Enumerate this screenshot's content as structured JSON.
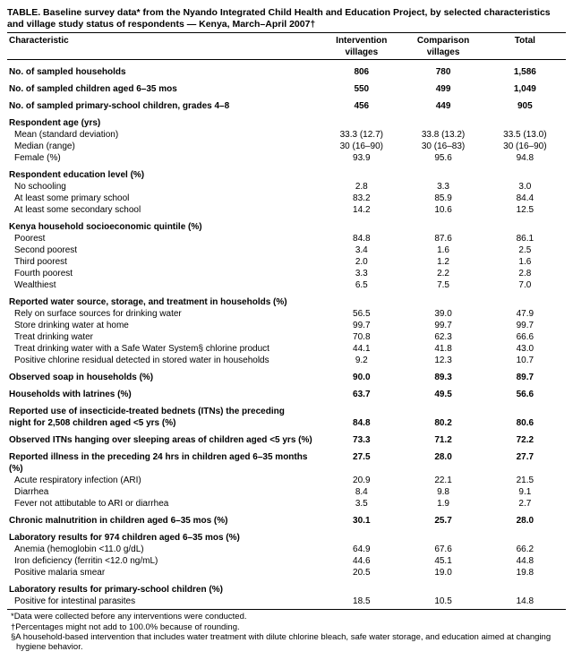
{
  "title": "TABLE. Baseline survey data* from the Nyando Integrated Child Health and Education Project, by selected characteristics and village study status of respondents — Kenya, March–April 2007†",
  "columns": {
    "c0": "Characteristic",
    "c1": "Intervention villages",
    "c2": "Comparison villages",
    "c3": "Total"
  },
  "rows": [
    {
      "label": "No. of sampled households",
      "bold": true,
      "v": [
        "806",
        "780",
        "1,586"
      ],
      "gap": true
    },
    {
      "label": "No. of sampled children aged 6–35 mos",
      "bold": true,
      "v": [
        "550",
        "499",
        "1,049"
      ],
      "gap": true
    },
    {
      "label": "No. of sampled primary-school children, grades 4–8",
      "bold": true,
      "v": [
        "456",
        "449",
        "905"
      ],
      "gap": true
    },
    {
      "label": "Respondent age (yrs)",
      "bold": true,
      "header": true,
      "gap": true
    },
    {
      "label": "Mean (standard deviation)",
      "indent": true,
      "v": [
        "33.3 (12.7)",
        "33.8 (13.2)",
        "33.5 (13.0)"
      ]
    },
    {
      "label": "Median (range)",
      "indent": true,
      "v": [
        "30 (16–90)",
        "30 (16–83)",
        "30 (16–90)"
      ]
    },
    {
      "label": "Female (%)",
      "indent": true,
      "v": [
        "93.9",
        "95.6",
        "94.8"
      ]
    },
    {
      "label": "Respondent education level (%)",
      "bold": true,
      "header": true,
      "gap": true
    },
    {
      "label": "No schooling",
      "indent": true,
      "v": [
        "2.8",
        "3.3",
        "3.0"
      ]
    },
    {
      "label": "At least some primary school",
      "indent": true,
      "v": [
        "83.2",
        "85.9",
        "84.4"
      ]
    },
    {
      "label": "At least some secondary school",
      "indent": true,
      "v": [
        "14.2",
        "10.6",
        "12.5"
      ]
    },
    {
      "label": "Kenya household socioeconomic quintile (%)",
      "bold": true,
      "header": true,
      "gap": true
    },
    {
      "label": "Poorest",
      "indent": true,
      "v": [
        "84.8",
        "87.6",
        "86.1"
      ]
    },
    {
      "label": "Second poorest",
      "indent": true,
      "v": [
        "3.4",
        "1.6",
        "2.5"
      ]
    },
    {
      "label": "Third poorest",
      "indent": true,
      "v": [
        "2.0",
        "1.2",
        "1.6"
      ]
    },
    {
      "label": "Fourth poorest",
      "indent": true,
      "v": [
        "3.3",
        "2.2",
        "2.8"
      ]
    },
    {
      "label": "Wealthiest",
      "indent": true,
      "v": [
        "6.5",
        "7.5",
        "7.0"
      ]
    },
    {
      "label": "Reported water source, storage, and treatment in households (%)",
      "bold": true,
      "header": true,
      "gap": true
    },
    {
      "label": "Rely on surface sources for drinking water",
      "indent": true,
      "v": [
        "56.5",
        "39.0",
        "47.9"
      ]
    },
    {
      "label": "Store drinking water at home",
      "indent": true,
      "v": [
        "99.7",
        "99.7",
        "99.7"
      ]
    },
    {
      "label": "Treat drinking water",
      "indent": true,
      "v": [
        "70.8",
        "62.3",
        "66.6"
      ]
    },
    {
      "label": "Treat drinking water with a Safe Water System§ chlorine product",
      "indent": true,
      "v": [
        "44.1",
        "41.8",
        "43.0"
      ]
    },
    {
      "label": "Positive chlorine residual detected in stored water in households",
      "indent": true,
      "v": [
        "9.2",
        "12.3",
        "10.7"
      ]
    },
    {
      "label": "Observed soap in households (%)",
      "bold": true,
      "v": [
        "90.0",
        "89.3",
        "89.7"
      ],
      "gap": true
    },
    {
      "label": "Households with latrines (%)",
      "bold": true,
      "v": [
        "63.7",
        "49.5",
        "56.6"
      ],
      "gap": true
    },
    {
      "label": "Reported use of insecticide-treated bednets (ITNs) the preceding",
      "bold": true,
      "header": true,
      "gap": true
    },
    {
      "label": " night for 2,508 children aged <5 yrs (%)",
      "bold": true,
      "v": [
        "84.8",
        "80.2",
        "80.6"
      ]
    },
    {
      "label": "Observed ITNs hanging over sleeping areas of children aged <5 yrs (%)",
      "bold": true,
      "v": [
        "73.3",
        "71.2",
        "72.2"
      ],
      "gap": true
    },
    {
      "label": "Reported illness in the preceding 24 hrs in children aged 6–35 months (%)",
      "bold": true,
      "v": [
        "27.5",
        "28.0",
        "27.7"
      ],
      "gap": true
    },
    {
      "label": "Acute respiratory infection (ARI)",
      "indent": true,
      "v": [
        "20.9",
        "22.1",
        "21.5"
      ]
    },
    {
      "label": "Diarrhea",
      "indent": true,
      "v": [
        "8.4",
        "9.8",
        "9.1"
      ]
    },
    {
      "label": "Fever not attibutable to ARI or diarrhea",
      "indent": true,
      "v": [
        "3.5",
        "1.9",
        "2.7"
      ]
    },
    {
      "label": "Chronic malnutrition in children aged 6–35 mos (%)",
      "bold": true,
      "v": [
        "30.1",
        "25.7",
        "28.0"
      ],
      "gap": true
    },
    {
      "label": "Laboratory results for 974 children aged 6–35 mos (%)",
      "bold": true,
      "header": true,
      "gap": true
    },
    {
      "label": "Anemia (hemoglobin <11.0 g/dL)",
      "indent": true,
      "v": [
        "64.9",
        "67.6",
        "66.2"
      ]
    },
    {
      "label": "Iron deficiency (ferritin <12.0 ng/mL)",
      "indent": true,
      "v": [
        "44.6",
        "45.1",
        "44.8"
      ]
    },
    {
      "label": "Positive malaria smear",
      "indent": true,
      "v": [
        "20.5",
        "19.0",
        "19.8"
      ]
    },
    {
      "label": "Laboratory results for primary-school children (%)",
      "bold": true,
      "header": true,
      "gap": true
    },
    {
      "label": "Positive for intestinal parasites",
      "indent": true,
      "v": [
        "18.5",
        "10.5",
        "14.8"
      ]
    }
  ],
  "footnotes": [
    "*Data were collected before any interventions were conducted.",
    "†Percentages might not add to 100.0% because of rounding.",
    "§A household-based intervention that includes water treatment with dilute chlorine bleach, safe water storage, and education aimed at changing hygiene behavior."
  ]
}
